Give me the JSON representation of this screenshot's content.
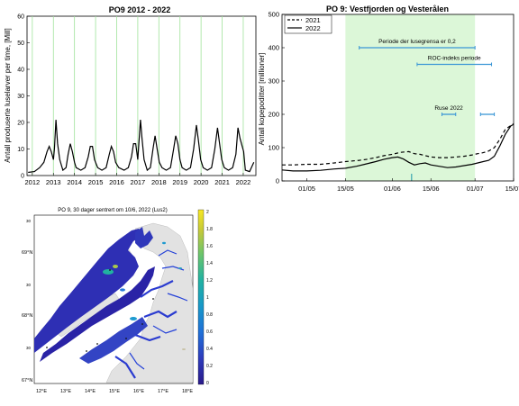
{
  "chart_data": [
    {
      "type": "line",
      "title": "PO9 2012 - 2022",
      "ylabel": "Antall produserte luselarver per time, [Mill]",
      "xlabel": "",
      "xlim": [
        2011.75,
        2022.6
      ],
      "ylim": [
        0,
        60
      ],
      "x_ticks": [
        "2012",
        "2013",
        "2014",
        "2015",
        "2016",
        "2017",
        "2018",
        "2019",
        "2020",
        "2021",
        "2022"
      ],
      "y_ticks": [
        0,
        10,
        20,
        30,
        40,
        50,
        60
      ],
      "grid": "vertical green lines at years",
      "line_color": "#000000",
      "series": [
        {
          "points": [
            [
              2011.8,
              1.2
            ],
            [
              2012.1,
              1.5
            ],
            [
              2012.35,
              3
            ],
            [
              2012.55,
              5
            ],
            [
              2012.7,
              9
            ],
            [
              2012.8,
              11
            ],
            [
              2012.9,
              9
            ],
            [
              2013.0,
              6
            ],
            [
              2013.05,
              10
            ],
            [
              2013.12,
              21
            ],
            [
              2013.2,
              12
            ],
            [
              2013.3,
              6
            ],
            [
              2013.45,
              2
            ],
            [
              2013.6,
              3
            ],
            [
              2013.7,
              8
            ],
            [
              2013.8,
              12
            ],
            [
              2013.9,
              9
            ],
            [
              2014.0,
              5
            ],
            [
              2014.08,
              3
            ],
            [
              2014.3,
              2
            ],
            [
              2014.5,
              3
            ],
            [
              2014.65,
              7
            ],
            [
              2014.75,
              11
            ],
            [
              2014.85,
              11
            ],
            [
              2014.95,
              6
            ],
            [
              2015.1,
              3
            ],
            [
              2015.3,
              2
            ],
            [
              2015.5,
              3
            ],
            [
              2015.65,
              8
            ],
            [
              2015.75,
              11
            ],
            [
              2015.85,
              9
            ],
            [
              2015.95,
              5
            ],
            [
              2016.1,
              3
            ],
            [
              2016.35,
              2
            ],
            [
              2016.55,
              3
            ],
            [
              2016.7,
              7
            ],
            [
              2016.8,
              12
            ],
            [
              2016.9,
              12
            ],
            [
              2017.0,
              6
            ],
            [
              2017.07,
              14
            ],
            [
              2017.13,
              21
            ],
            [
              2017.2,
              14
            ],
            [
              2017.3,
              6
            ],
            [
              2017.45,
              2
            ],
            [
              2017.6,
              3
            ],
            [
              2017.72,
              10
            ],
            [
              2017.82,
              15
            ],
            [
              2017.92,
              10
            ],
            [
              2018.02,
              5
            ],
            [
              2018.15,
              3
            ],
            [
              2018.35,
              2
            ],
            [
              2018.55,
              3
            ],
            [
              2018.7,
              10
            ],
            [
              2018.8,
              15
            ],
            [
              2018.9,
              12
            ],
            [
              2019.0,
              6
            ],
            [
              2019.1,
              3
            ],
            [
              2019.3,
              2
            ],
            [
              2019.5,
              3
            ],
            [
              2019.65,
              10
            ],
            [
              2019.78,
              19
            ],
            [
              2019.88,
              13
            ],
            [
              2019.98,
              6
            ],
            [
              2020.1,
              3
            ],
            [
              2020.3,
              2
            ],
            [
              2020.5,
              3
            ],
            [
              2020.65,
              10
            ],
            [
              2020.78,
              18
            ],
            [
              2020.88,
              12
            ],
            [
              2020.98,
              6
            ],
            [
              2021.1,
              3
            ],
            [
              2021.3,
              2
            ],
            [
              2021.5,
              3
            ],
            [
              2021.65,
              8
            ],
            [
              2021.75,
              18
            ],
            [
              2021.85,
              14
            ],
            [
              2021.95,
              11
            ],
            [
              2022.02,
              9
            ],
            [
              2022.1,
              2
            ],
            [
              2022.3,
              1.5
            ],
            [
              2022.5,
              5
            ]
          ]
        }
      ]
    },
    {
      "type": "line",
      "title": "PO 9: Vestfjorden og Vesterålen",
      "ylabel": "Antall kopepoditter [millioner]",
      "xlabel": "",
      "x_unit": "day of year",
      "xlim": [
        112,
        196
      ],
      "ylim": [
        0,
        500
      ],
      "x_ticks": [
        {
          "doy": 121,
          "label": "01/05"
        },
        {
          "doy": 135,
          "label": "15/05"
        },
        {
          "doy": 152,
          "label": "01/06"
        },
        {
          "doy": 166,
          "label": "15/06"
        },
        {
          "doy": 182,
          "label": "01/07"
        },
        {
          "doy": 196,
          "label": "15/07"
        }
      ],
      "y_ticks": [
        0,
        100,
        200,
        300,
        400,
        500
      ],
      "highlight": {
        "from": 135,
        "to": 182,
        "color": "#dcf7d8"
      },
      "legend": {
        "placement": "top-left",
        "entries": [
          "2021",
          "2022"
        ]
      },
      "series": [
        {
          "name": "2021",
          "style": "dashed",
          "points": [
            [
              112,
              48
            ],
            [
              116,
              48
            ],
            [
              121,
              50
            ],
            [
              126,
              50
            ],
            [
              131,
              54
            ],
            [
              135,
              58
            ],
            [
              140,
              62
            ],
            [
              143,
              65
            ],
            [
              146,
              70
            ],
            [
              149,
              76
            ],
            [
              152,
              80
            ],
            [
              155,
              86
            ],
            [
              158,
              88
            ],
            [
              160,
              82
            ],
            [
              162,
              80
            ],
            [
              164,
              76
            ],
            [
              166,
              72
            ],
            [
              169,
              70
            ],
            [
              172,
              70
            ],
            [
              175,
              72
            ],
            [
              178,
              74
            ],
            [
              181,
              78
            ],
            [
              183,
              82
            ],
            [
              185,
              85
            ],
            [
              187,
              90
            ],
            [
              189,
              100
            ],
            [
              191,
              125
            ],
            [
              193,
              155
            ],
            [
              196,
              172
            ]
          ]
        },
        {
          "name": "2022",
          "style": "solid",
          "points": [
            [
              112,
              33
            ],
            [
              116,
              30
            ],
            [
              121,
              30
            ],
            [
              126,
              32
            ],
            [
              131,
              36
            ],
            [
              135,
              38
            ],
            [
              139,
              44
            ],
            [
              142,
              50
            ],
            [
              146,
              58
            ],
            [
              149,
              65
            ],
            [
              152,
              70
            ],
            [
              154,
              72
            ],
            [
              156,
              66
            ],
            [
              158,
              56
            ],
            [
              160,
              48
            ],
            [
              162,
              52
            ],
            [
              164,
              54
            ],
            [
              166,
              48
            ],
            [
              169,
              44
            ],
            [
              172,
              40
            ],
            [
              175,
              42
            ],
            [
              178,
              46
            ],
            [
              181,
              50
            ],
            [
              183,
              54
            ],
            [
              185,
              58
            ],
            [
              187,
              62
            ],
            [
              189,
              74
            ],
            [
              191,
              105
            ],
            [
              193,
              140
            ],
            [
              195,
              165
            ],
            [
              196,
              170
            ]
          ]
        }
      ],
      "annotations": [
        {
          "text": "Periode der lusegrensa er 0,2",
          "from": 140,
          "to": 182,
          "y": 400,
          "color": "#3a96d6"
        },
        {
          "text": "ROC-indeks periode",
          "from": 161,
          "to": 188,
          "y": 350,
          "color": "#3a96d6"
        },
        {
          "text": "Ruse 2022",
          "from": 170,
          "to": 175,
          "y": 200,
          "color": "#3a96d6"
        },
        {
          "text": "",
          "from": 184,
          "to": 189,
          "y": 200,
          "color": "#3a96d6"
        }
      ],
      "marker": {
        "doy": 159,
        "color": "#3aa6b0"
      }
    },
    {
      "type": "heatmap",
      "title": "PO 9, 30 dager sentrert om 10/6, 2022 (Lus2)",
      "x_ticks": [
        "12°E",
        "13°E",
        "14°E",
        "15°E",
        "16°E",
        "17°E",
        "18°E"
      ],
      "y_ticks": [
        "69°N",
        "68°N",
        "67°N"
      ],
      "extra_lat_labels": [
        "30",
        "30",
        "30"
      ],
      "colorbar": {
        "ticks": [
          "2",
          "1.8",
          "1.6",
          "1.4",
          "1.2",
          "1",
          "0.8",
          "0.6",
          "0.4",
          "0.2",
          "0"
        ],
        "min": 0,
        "max": 2,
        "colors": [
          "#2a1a8a",
          "#2e3cbd",
          "#1f70d8",
          "#1899c8",
          "#23b3a1",
          "#6ec56a",
          "#c4c93a",
          "#f7e823"
        ]
      },
      "land_color": "#e2e2e2",
      "sea_color": "#ffffff"
    }
  ]
}
